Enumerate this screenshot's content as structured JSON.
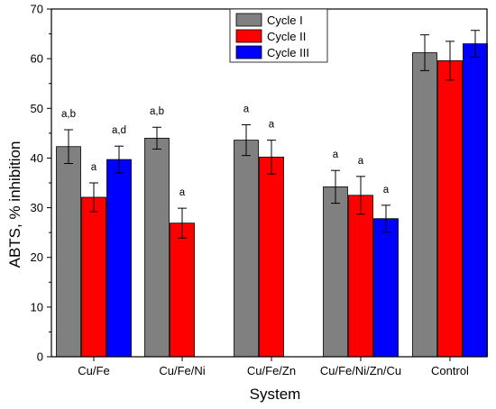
{
  "chart_data": {
    "type": "bar",
    "xlabel": "System",
    "ylabel": "ABTS, % inhibition",
    "ylim": [
      0,
      70
    ],
    "yticks": [
      0,
      10,
      20,
      30,
      40,
      50,
      60,
      70
    ],
    "categories": [
      "Cu/Fe",
      "Cu/Fe/Ni",
      "Cu/Fe/Zn",
      "Cu/Fe/Ni/Zn/Cu",
      "Control"
    ],
    "legend_position": "top-center",
    "grid": false,
    "series": [
      {
        "name": "Cycle I",
        "color": "#808080",
        "values": [
          42.3,
          44.0,
          43.6,
          34.2,
          61.2
        ],
        "errors": [
          3.4,
          2.2,
          3.1,
          3.3,
          3.6
        ],
        "labels": [
          "a,b",
          "a,b",
          "a",
          "a",
          ""
        ]
      },
      {
        "name": "Cycle II",
        "color": "#ff0000",
        "values": [
          32.1,
          26.9,
          40.2,
          32.5,
          59.6
        ],
        "errors": [
          2.9,
          3.0,
          3.4,
          3.8,
          3.9
        ],
        "labels": [
          "a",
          "a",
          "a",
          "a",
          ""
        ]
      },
      {
        "name": "Cycle III",
        "color": "#0000ff",
        "values": [
          39.7,
          null,
          null,
          27.8,
          63.0
        ],
        "errors": [
          2.7,
          null,
          null,
          2.7,
          2.7
        ],
        "labels": [
          "a,d",
          "",
          "",
          "a",
          ""
        ]
      }
    ]
  }
}
